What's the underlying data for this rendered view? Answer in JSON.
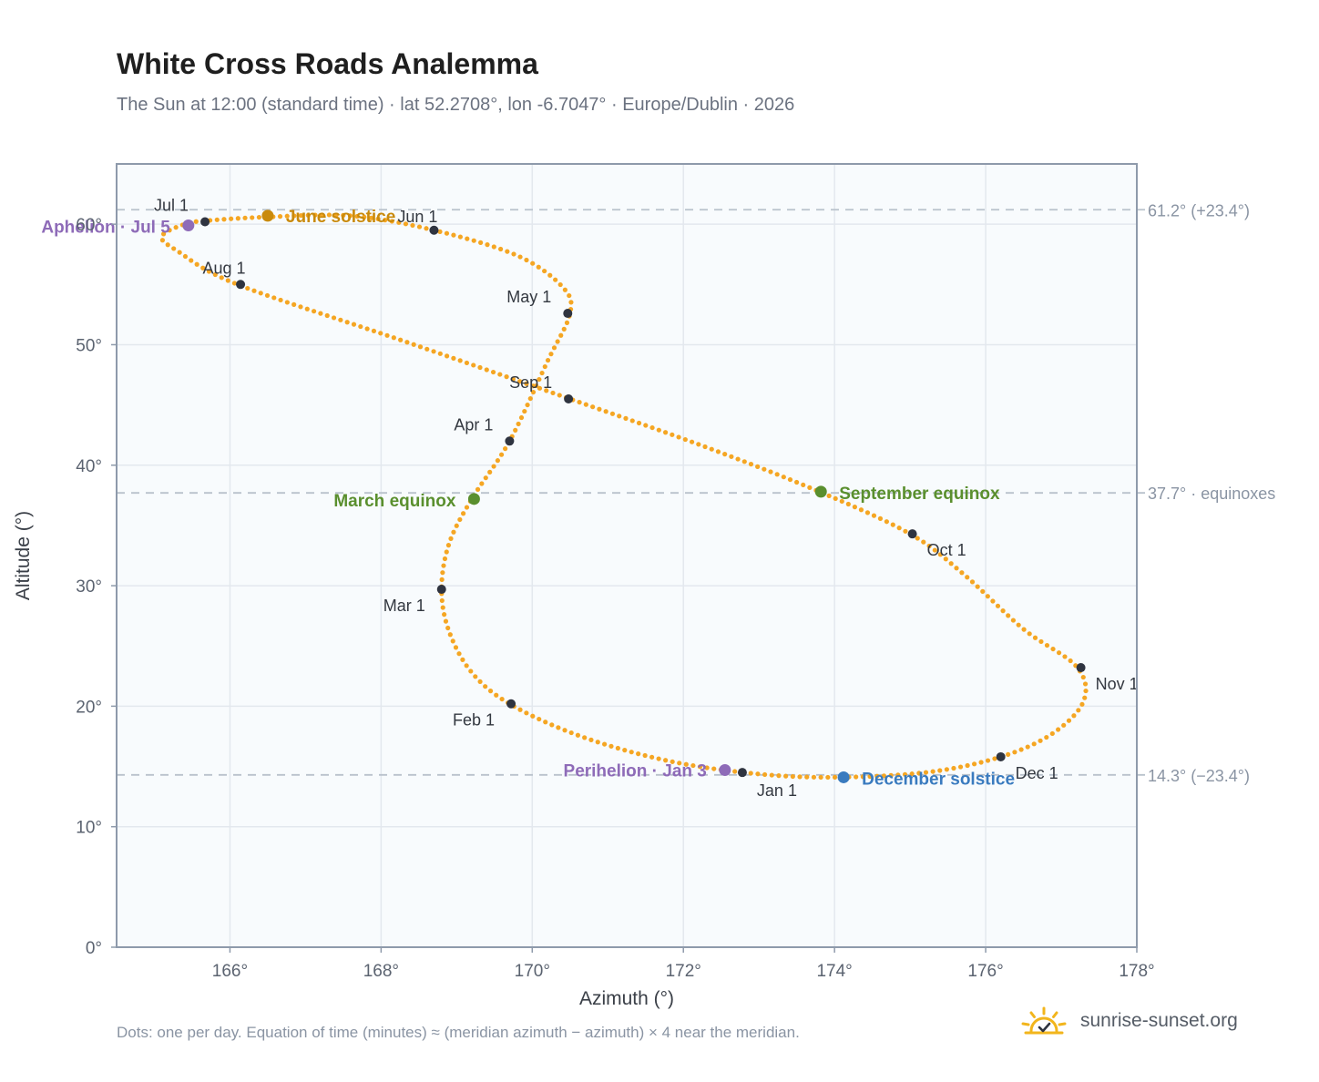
{
  "header": {
    "title": "White Cross Roads Analemma",
    "subtitle": "The Sun at 12:00 (standard time) · lat 52.2708°, lon -6.7047° · Europe/Dublin · 2026"
  },
  "footer": {
    "note": "Dots: one per day. Equation of time (minutes) ≈ (meridian azimuth − azimuth) × 4 near the meridian.",
    "brand": "sunrise-sunset.org",
    "brand_icon": "sun-icon"
  },
  "colors": {
    "path": "#f5a623",
    "month_dot": "#2f3440",
    "solstice_june": "#c98a0c",
    "solstice_december": "#3a7bbf",
    "equinox": "#5a8f2e",
    "apsis": "#8e6bb8",
    "plot_bg": "#f8fbfd",
    "grid": "#e3e8ee",
    "frame": "#8e9aab",
    "ref_line": "#b9c2cc"
  },
  "chart_data": {
    "type": "scatter",
    "xlabel": "Azimuth (°)",
    "ylabel": "Altitude (°)",
    "xlim": [
      164.5,
      178
    ],
    "ylim": [
      0,
      65
    ],
    "x_ticks": [
      166,
      168,
      170,
      172,
      174,
      176,
      178
    ],
    "x_tick_labels": [
      "166°",
      "168°",
      "170°",
      "172°",
      "174°",
      "176°",
      "178°"
    ],
    "y_ticks": [
      0,
      10,
      20,
      30,
      40,
      50,
      60
    ],
    "y_tick_labels": [
      "0°",
      "10°",
      "20°",
      "30°",
      "40°",
      "50°",
      "60°"
    ],
    "grid": true,
    "reference_lines": [
      {
        "y": 61.2,
        "label": "61.2° (+23.4°)"
      },
      {
        "y": 37.7,
        "label": "37.7° · equinoxes"
      },
      {
        "y": 14.3,
        "label": "14.3° (−23.4°)"
      }
    ],
    "analemma_path": [
      [
        172.8,
        14.5
      ],
      [
        173.9,
        14.1
      ],
      [
        175.2,
        14.5
      ],
      [
        176.2,
        15.8
      ],
      [
        176.9,
        17.8
      ],
      [
        177.3,
        20.5
      ],
      [
        177.2,
        23.3
      ],
      [
        176.5,
        26.4
      ],
      [
        175.7,
        31.0
      ],
      [
        175.0,
        34.3
      ],
      [
        173.8,
        37.8
      ],
      [
        172.3,
        41.5
      ],
      [
        170.5,
        45.5
      ],
      [
        168.3,
        50.3
      ],
      [
        166.1,
        55.0
      ],
      [
        165.3,
        57.8
      ],
      [
        165.1,
        59.0
      ],
      [
        165.4,
        60.0
      ],
      [
        165.7,
        60.3
      ],
      [
        166.5,
        60.6
      ],
      [
        167.6,
        60.7
      ],
      [
        168.7,
        59.5
      ],
      [
        169.8,
        57.4
      ],
      [
        170.4,
        54.8
      ],
      [
        170.5,
        52.6
      ],
      [
        170.2,
        48.6
      ],
      [
        169.7,
        42.0
      ],
      [
        169.2,
        37.2
      ],
      [
        168.9,
        33.5
      ],
      [
        168.8,
        29.7
      ],
      [
        168.9,
        26.2
      ],
      [
        169.2,
        22.8
      ],
      [
        169.7,
        20.2
      ],
      [
        170.6,
        17.6
      ],
      [
        171.7,
        15.6
      ],
      [
        172.8,
        14.5
      ]
    ],
    "month_points": [
      {
        "label": "Jan 1",
        "x": 172.78,
        "y": 14.5
      },
      {
        "label": "Feb 1",
        "x": 169.72,
        "y": 20.2
      },
      {
        "label": "Mar 1",
        "x": 168.8,
        "y": 29.7
      },
      {
        "label": "Apr 1",
        "x": 169.7,
        "y": 42.0
      },
      {
        "label": "May 1",
        "x": 170.47,
        "y": 52.6
      },
      {
        "label": "Jun 1",
        "x": 168.7,
        "y": 59.5
      },
      {
        "label": "Jul 1",
        "x": 165.67,
        "y": 60.2
      },
      {
        "label": "Aug 1",
        "x": 166.14,
        "y": 55.0
      },
      {
        "label": "Sep 1",
        "x": 170.48,
        "y": 45.5
      },
      {
        "label": "Oct 1",
        "x": 175.03,
        "y": 34.3
      },
      {
        "label": "Nov 1",
        "x": 177.26,
        "y": 23.2
      },
      {
        "label": "Dec 1",
        "x": 176.2,
        "y": 15.8
      }
    ],
    "events": [
      {
        "label": "June solstice",
        "x": 166.5,
        "y": 60.7,
        "kind": "solstice_june"
      },
      {
        "label": "December solstice",
        "x": 174.12,
        "y": 14.1,
        "kind": "solstice_december"
      },
      {
        "label": "March equinox",
        "x": 169.23,
        "y": 37.2,
        "kind": "equinox"
      },
      {
        "label": "September equinox",
        "x": 173.82,
        "y": 37.8,
        "kind": "equinox"
      },
      {
        "label": "Aphelion · Jul 5",
        "x": 165.45,
        "y": 59.9,
        "kind": "apsis"
      },
      {
        "label": "Perihelion · Jan 3",
        "x": 172.55,
        "y": 14.7,
        "kind": "apsis"
      }
    ]
  }
}
